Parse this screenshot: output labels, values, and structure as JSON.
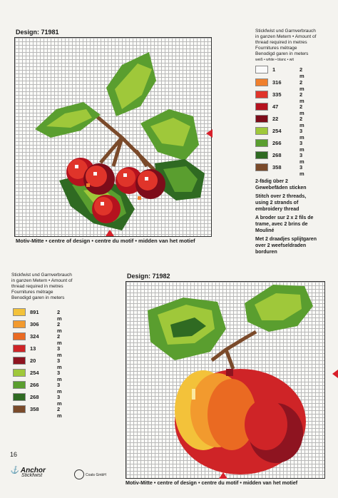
{
  "top": {
    "design_label": "Design: 71981",
    "caption": "Motiv-Mitte • centre of design • centre du motif • midden van het motief",
    "legend_header": [
      "Stickfwist und Garnverbrauch",
      "in ganzen Metern • Amount of",
      "thread required in metres",
      "Fournitures métrage",
      "Benodigd garen in meters"
    ],
    "legend_sub": "weiß • white • blanc • wit",
    "legend": [
      {
        "code": "1",
        "amount": "2 m",
        "color": "#fafafa"
      },
      {
        "code": "316",
        "amount": "2 m",
        "color": "#f07f2c"
      },
      {
        "code": "335",
        "amount": "2 m",
        "color": "#e0342a"
      },
      {
        "code": "47",
        "amount": "2 m",
        "color": "#b5121e"
      },
      {
        "code": "22",
        "amount": "2 m",
        "color": "#7d0c1a"
      },
      {
        "code": "254",
        "amount": "3 m",
        "color": "#9fc83a"
      },
      {
        "code": "266",
        "amount": "3 m",
        "color": "#5a9e2f"
      },
      {
        "code": "268",
        "amount": "3 m",
        "color": "#2f6a22"
      },
      {
        "code": "358",
        "amount": "3 m",
        "color": "#7a4a2a"
      }
    ],
    "instructions": [
      "2-fädig über 2",
      "Gewebefäden sticken",
      "Stitch over 2 threads,",
      "using 2 strands of",
      "embroidery thread",
      "A broder sur 2 x 2 fils de",
      "trame, avec 2 brins de",
      "Mouliné",
      "Met 2 draadjes splijtgaren",
      "over 2 weefseldraden",
      "borduren"
    ]
  },
  "bottom": {
    "design_label": "Design: 71982",
    "caption": "Motiv-Mitte • centre of design • centre du motif • midden van het motief",
    "legend_header": [
      "Stickfwist und Garnverbrauch",
      "in ganzen Metern • Amount of",
      "thread required in metres",
      "Fournitures métrage",
      "Benodigd garen in meters"
    ],
    "legend": [
      {
        "code": "891",
        "amount": "2 m",
        "color": "#f3c23a"
      },
      {
        "code": "306",
        "amount": "2 m",
        "color": "#f29a2e"
      },
      {
        "code": "324",
        "amount": "2 m",
        "color": "#ea6a22"
      },
      {
        "code": "13",
        "amount": "3 m",
        "color": "#cf2427"
      },
      {
        "code": "20",
        "amount": "3 m",
        "color": "#8e1420"
      },
      {
        "code": "254",
        "amount": "3 m",
        "color": "#9fc83a"
      },
      {
        "code": "266",
        "amount": "3 m",
        "color": "#5a9e2f"
      },
      {
        "code": "268",
        "amount": "3 m",
        "color": "#2f6a22"
      },
      {
        "code": "358",
        "amount": "2 m",
        "color": "#7a4a2a"
      }
    ]
  },
  "footer": {
    "page_number": "16",
    "brand": "Anchor",
    "brand_sub": "Stickfwist",
    "coats": "Coats GmbH"
  }
}
